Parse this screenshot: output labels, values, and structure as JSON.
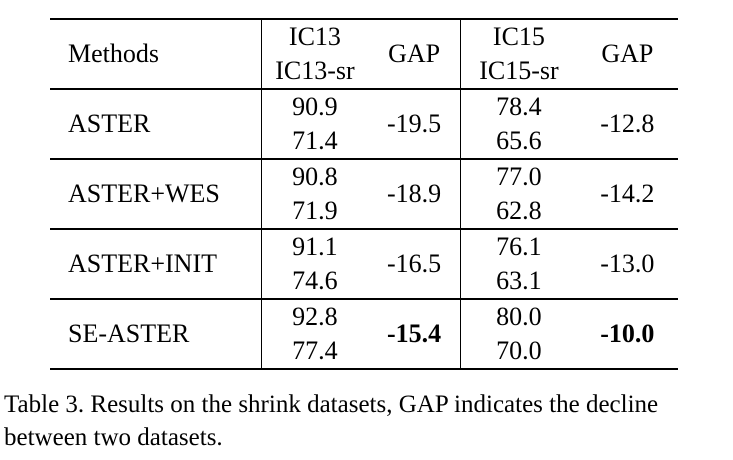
{
  "table": {
    "headers": {
      "methods": "Methods",
      "set1_top": "IC13",
      "set1_bottom": "IC13-sr",
      "gap1": "GAP",
      "set2_top": "IC15",
      "set2_bottom": "IC15-sr",
      "gap2": "GAP"
    },
    "rows": [
      {
        "method": "ASTER",
        "ic13": "90.9",
        "ic13_sr": "71.4",
        "gap1": "-19.5",
        "ic15": "78.4",
        "ic15_sr": "65.6",
        "gap2": "-12.8"
      },
      {
        "method": "ASTER+WES",
        "ic13": "90.8",
        "ic13_sr": "71.9",
        "gap1": "-18.9",
        "ic15": "77.0",
        "ic15_sr": "62.8",
        "gap2": "-14.2"
      },
      {
        "method": "ASTER+INIT",
        "ic13": "91.1",
        "ic13_sr": "74.6",
        "gap1": "-16.5",
        "ic15": "76.1",
        "ic15_sr": "63.1",
        "gap2": "-13.0"
      },
      {
        "method": "SE-ASTER",
        "ic13": "92.8",
        "ic13_sr": "77.4",
        "gap1": "-15.4",
        "ic15": "80.0",
        "ic15_sr": "70.0",
        "gap2": "-10.0"
      }
    ]
  },
  "caption": "Table 3. Results on the shrink datasets, GAP indicates the decline between two datasets."
}
